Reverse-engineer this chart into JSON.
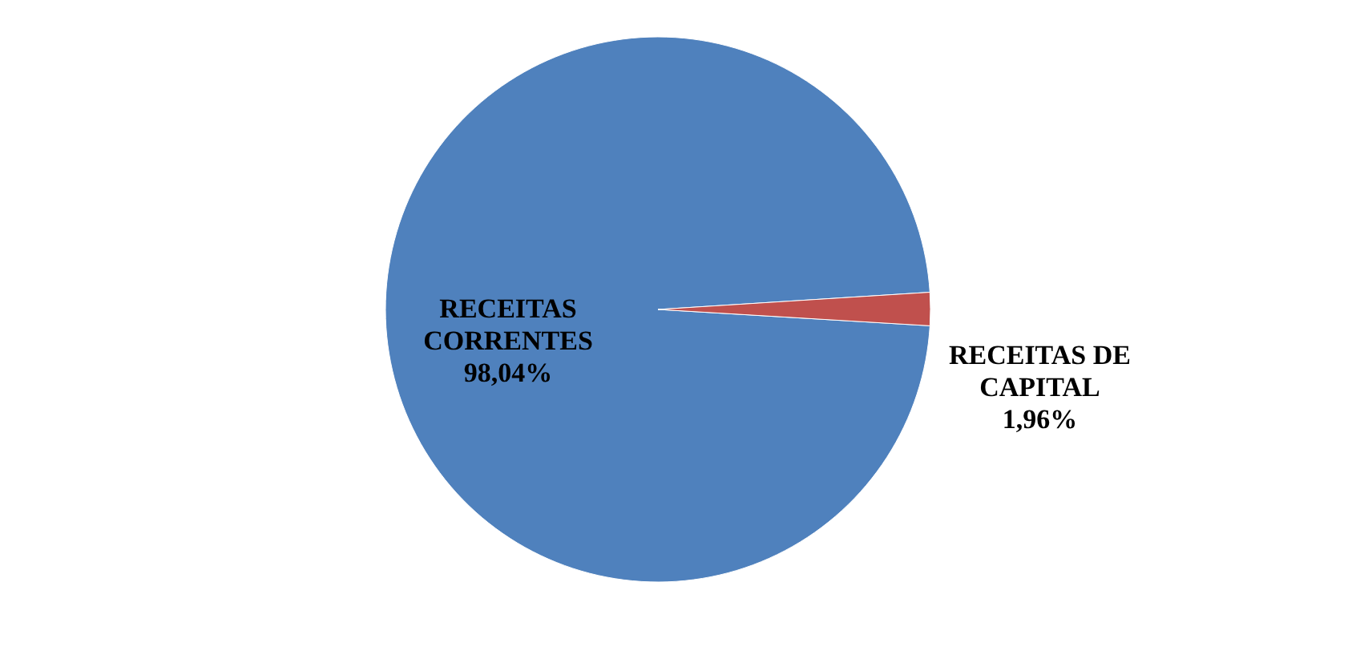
{
  "chart_data": {
    "type": "pie",
    "categories": [
      "RECEITAS CORRENTES",
      "RECEITAS DE CAPITAL"
    ],
    "values": [
      98.04,
      1.96
    ],
    "colors": [
      "#4f81bd",
      "#c0504d"
    ],
    "value_labels": [
      "98,04%",
      "1,96%"
    ],
    "legend": false
  }
}
